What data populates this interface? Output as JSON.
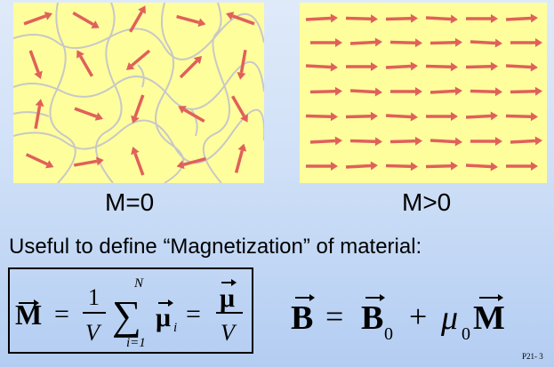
{
  "panels": {
    "left": {
      "label": "M=0",
      "background": "#fffe9c",
      "arrow_color": "#e0605a",
      "boundary_color": "#c8c8c8"
    },
    "right": {
      "label": "M>0",
      "background": "#fffe9c",
      "arrow_color": "#e0605a"
    }
  },
  "intro_text": "Useful to define “Magnetization” of material:",
  "equations": {
    "magnetization": {
      "lhs": "M",
      "one": "1",
      "volume": "V",
      "sum_upper": "N",
      "sum_lower": "i=1",
      "mu": "μ",
      "mu_sub": "i"
    },
    "field": {
      "lhs": "B",
      "b0_sub": "0",
      "mu0": "μ",
      "mu0_sub": "0",
      "m": "M"
    }
  },
  "slide_number": "P21- 3"
}
